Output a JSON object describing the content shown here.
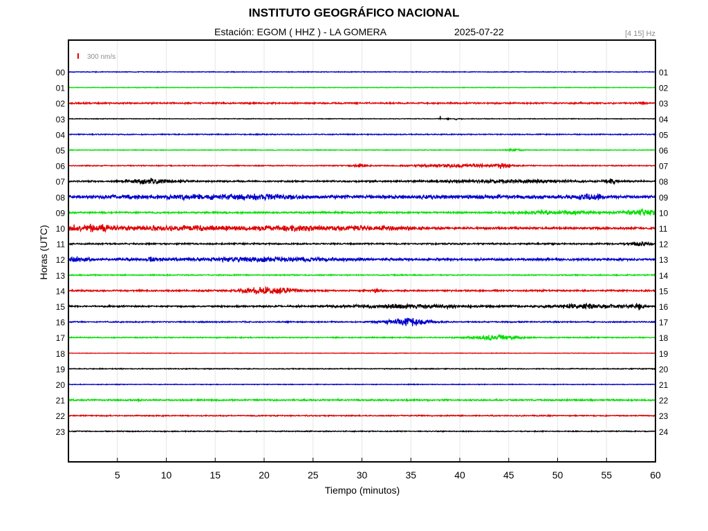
{
  "header": {
    "title": "INSTITUTO GEOGRÁFICO NACIONAL",
    "station_label": "Estación:  EGOM ( HHZ ) - LA GOMERA",
    "date": "2025-07-22",
    "filter": "[4 15] Hz"
  },
  "chart_data": {
    "type": "line",
    "title": "INSTITUTO GEOGRÁFICO NACIONAL",
    "xlabel": "Tiempo (minutos)",
    "ylabel": "Horas (UTC)",
    "xlim": [
      0,
      60
    ],
    "x_ticks": [
      5,
      10,
      15,
      20,
      25,
      30,
      35,
      40,
      45,
      50,
      55,
      60
    ],
    "scale_label": "300 nm/s",
    "scale_color": "#e00000",
    "grid": true,
    "trace_colors": [
      "#0000cc",
      "#00e000",
      "#e00000",
      "#000000"
    ],
    "traces": [
      {
        "left_label": "00",
        "right_label": "01",
        "color": "#0000cc",
        "base_amp": 0.6,
        "events": []
      },
      {
        "left_label": "01",
        "right_label": "02",
        "color": "#00e000",
        "base_amp": 0.5,
        "events": []
      },
      {
        "left_label": "02",
        "right_label": "03",
        "color": "#e00000",
        "base_amp": 1.2,
        "events": [
          {
            "t": 58.6,
            "w": 0.2,
            "a": 3
          }
        ]
      },
      {
        "left_label": "03",
        "right_label": "04",
        "color": "#000000",
        "base_amp": 0.5,
        "events": [
          {
            "t": 38.0,
            "w": 0.05,
            "a": 4
          },
          {
            "t": 38.8,
            "w": 0.05,
            "a": 4
          },
          {
            "t": 39.6,
            "w": 0.05,
            "a": 3
          },
          {
            "t": 40.2,
            "w": 0.05,
            "a": 2
          }
        ]
      },
      {
        "left_label": "04",
        "right_label": "05",
        "color": "#0000cc",
        "base_amp": 0.8,
        "events": []
      },
      {
        "left_label": "05",
        "right_label": "06",
        "color": "#00e000",
        "base_amp": 0.6,
        "events": [
          {
            "t": 45.5,
            "w": 0.6,
            "a": 1.5
          }
        ]
      },
      {
        "left_label": "06",
        "right_label": "07",
        "color": "#e00000",
        "base_amp": 0.8,
        "events": [
          {
            "t": 29.8,
            "w": 0.5,
            "a": 3
          },
          {
            "t": 40,
            "w": 3,
            "a": 2.5
          },
          {
            "t": 44.5,
            "w": 0.6,
            "a": 3.5
          }
        ]
      },
      {
        "left_label": "07",
        "right_label": "08",
        "color": "#000000",
        "base_amp": 1.3,
        "events": [
          {
            "t": 8.5,
            "w": 1.8,
            "a": 4
          },
          {
            "t": 45,
            "w": 5,
            "a": 2
          },
          {
            "t": 55.5,
            "w": 0.3,
            "a": 4
          }
        ]
      },
      {
        "left_label": "08",
        "right_label": "09",
        "color": "#0000cc",
        "base_amp": 2.0,
        "events": [
          {
            "t": 10,
            "w": 6,
            "a": 2
          },
          {
            "t": 19,
            "w": 4,
            "a": 3
          },
          {
            "t": 40,
            "w": 8,
            "a": 1.5
          },
          {
            "t": 53.5,
            "w": 1.2,
            "a": 4
          }
        ]
      },
      {
        "left_label": "09",
        "right_label": "10",
        "color": "#00e000",
        "base_amp": 1.3,
        "events": [
          {
            "t": 50,
            "w": 3,
            "a": 2.5
          },
          {
            "t": 59,
            "w": 1.5,
            "a": 4
          }
        ]
      },
      {
        "left_label": "10",
        "right_label": "11",
        "color": "#e00000",
        "base_amp": 1.8,
        "events": [
          {
            "t": 2,
            "w": 2,
            "a": 4.5
          },
          {
            "t": 12,
            "w": 5,
            "a": 3
          },
          {
            "t": 24,
            "w": 4,
            "a": 3
          },
          {
            "t": 32,
            "w": 3,
            "a": 2
          }
        ]
      },
      {
        "left_label": "11",
        "right_label": "12",
        "color": "#000000",
        "base_amp": 1.2,
        "events": [
          {
            "t": 58.5,
            "w": 0.8,
            "a": 3
          }
        ]
      },
      {
        "left_label": "12",
        "right_label": "13",
        "color": "#0000cc",
        "base_amp": 1.8,
        "events": [
          {
            "t": 1,
            "w": 1,
            "a": 3
          },
          {
            "t": 8.5,
            "w": 0.2,
            "a": 5
          },
          {
            "t": 20,
            "w": 6,
            "a": 2.5
          }
        ]
      },
      {
        "left_label": "13",
        "right_label": "14",
        "color": "#00e000",
        "base_amp": 0.9,
        "events": []
      },
      {
        "left_label": "14",
        "right_label": "15",
        "color": "#e00000",
        "base_amp": 1.3,
        "events": [
          {
            "t": 20.5,
            "w": 2.0,
            "a": 6
          },
          {
            "t": 31.5,
            "w": 0.3,
            "a": 3
          }
        ]
      },
      {
        "left_label": "15",
        "right_label": "16",
        "color": "#000000",
        "base_amp": 1.3,
        "events": [
          {
            "t": 35,
            "w": 5,
            "a": 2.5
          },
          {
            "t": 53,
            "w": 3,
            "a": 3
          },
          {
            "t": 58.3,
            "w": 0.3,
            "a": 5
          }
        ]
      },
      {
        "left_label": "16",
        "right_label": "17",
        "color": "#0000cc",
        "base_amp": 1.0,
        "events": [
          {
            "t": 34.8,
            "w": 1.6,
            "a": 6
          }
        ]
      },
      {
        "left_label": "17",
        "right_label": "18",
        "color": "#00e000",
        "base_amp": 0.9,
        "events": [
          {
            "t": 43.5,
            "w": 1.6,
            "a": 4
          }
        ]
      },
      {
        "left_label": "18",
        "right_label": "19",
        "color": "#e00000",
        "base_amp": 0.4,
        "events": []
      },
      {
        "left_label": "19",
        "right_label": "20",
        "color": "#000000",
        "base_amp": 0.7,
        "events": []
      },
      {
        "left_label": "20",
        "right_label": "21",
        "color": "#0000cc",
        "base_amp": 0.6,
        "events": []
      },
      {
        "left_label": "21",
        "right_label": "22",
        "color": "#00e000",
        "base_amp": 1.2,
        "events": []
      },
      {
        "left_label": "22",
        "right_label": "23",
        "color": "#e00000",
        "base_amp": 0.9,
        "events": []
      },
      {
        "left_label": "23",
        "right_label": "24",
        "color": "#000000",
        "base_amp": 0.8,
        "events": []
      }
    ]
  }
}
